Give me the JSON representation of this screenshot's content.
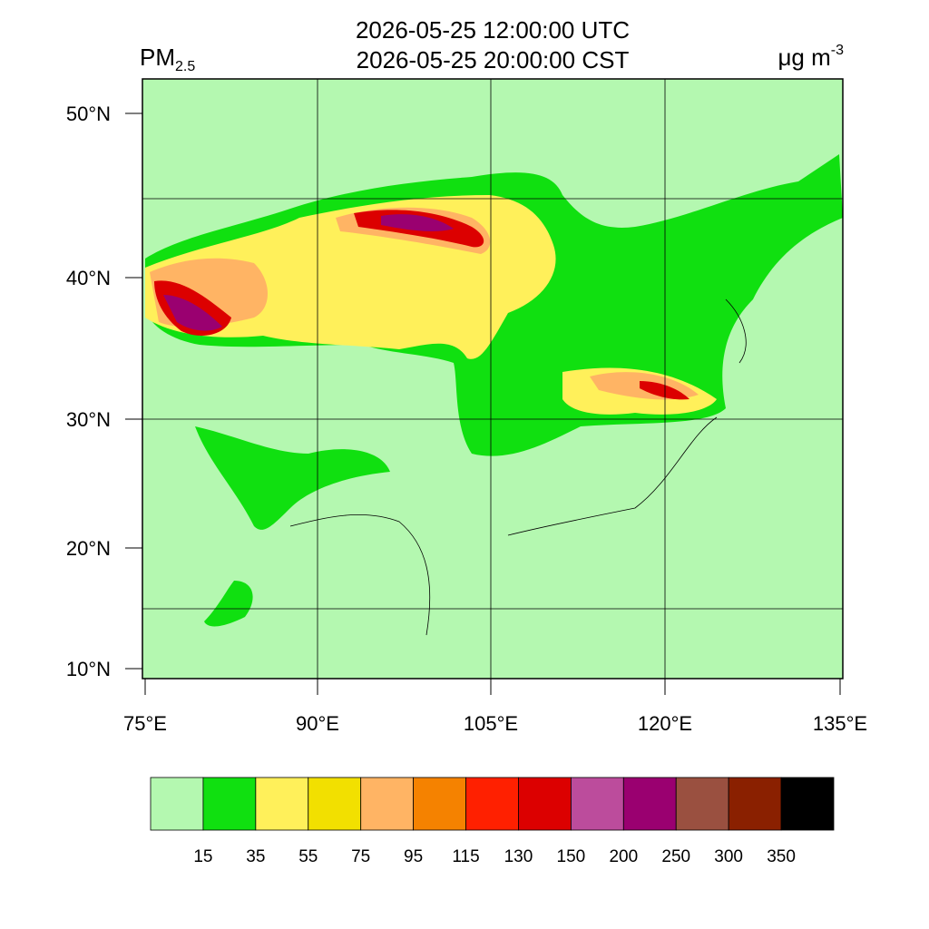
{
  "header": {
    "title_lines": [
      "2026-05-25 12:00:00 UTC",
      "2026-05-25 20:00:00 CST"
    ],
    "variable": {
      "name": "PM",
      "subscript": "2.5"
    },
    "units": {
      "base": "μg m",
      "superscript": "-3"
    }
  },
  "map": {
    "lat_labels": [
      "50°N",
      "40°N",
      "30°N",
      "20°N",
      "10°N"
    ],
    "lon_labels": [
      "75°E",
      "90°E",
      "105°E",
      "120°E",
      "135°E"
    ]
  },
  "legend": {
    "colors": [
      "#b4f8b0",
      "#10e010",
      "#fff05a",
      "#f2e000",
      "#ffb464",
      "#f58200",
      "#ff2000",
      "#dc0000",
      "#bc4c9c",
      "#9a0070",
      "#9a5040",
      "#8a2000",
      "#000000"
    ],
    "levels": [
      15,
      35,
      55,
      75,
      95,
      115,
      130,
      150,
      200,
      250,
      300,
      350
    ]
  }
}
